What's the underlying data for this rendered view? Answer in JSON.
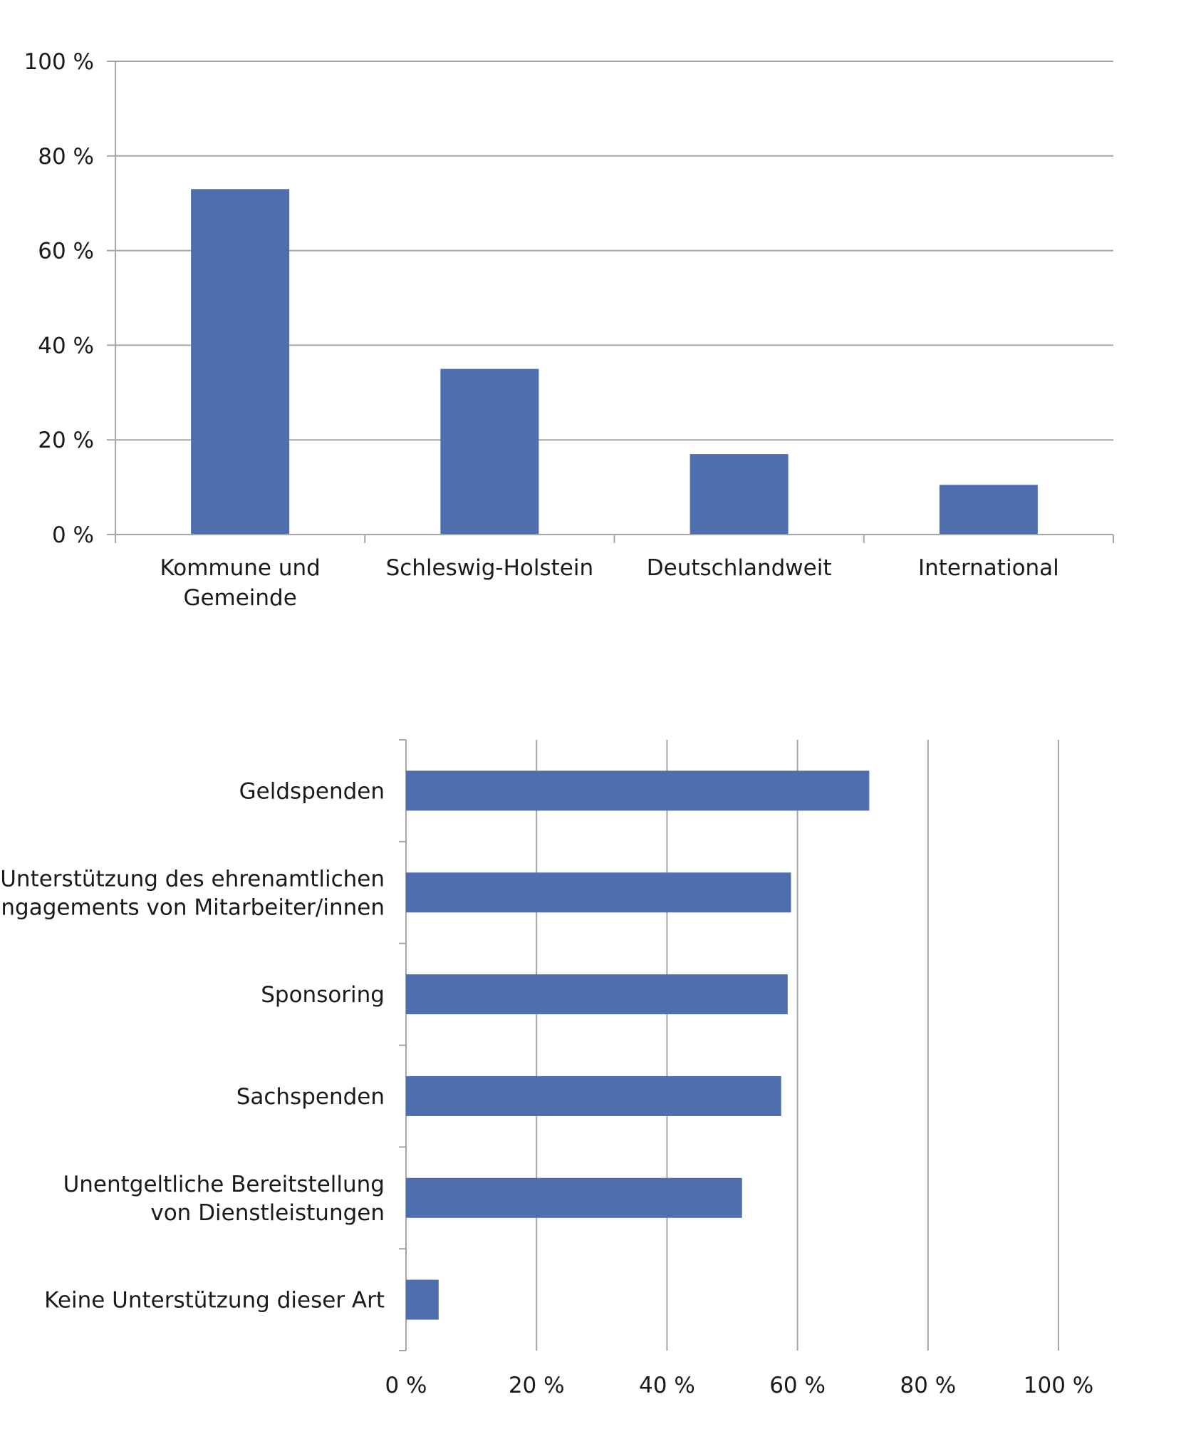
{
  "chart_data": [
    {
      "type": "bar",
      "orientation": "vertical",
      "title": "",
      "xlabel": "",
      "ylabel": "",
      "ylim": [
        0,
        100
      ],
      "grid": true,
      "bar_color": "#4e6fad",
      "y_ticks": [
        "0 %",
        "20 %",
        "40 %",
        "60 %",
        "80 %",
        "100 %"
      ],
      "categories": [
        [
          "Kommune und",
          "Gemeinde"
        ],
        [
          "Schleswig-Holstein"
        ],
        [
          "Deutschlandweit"
        ],
        [
          "International"
        ]
      ],
      "values": [
        73,
        35,
        17,
        10.5
      ]
    },
    {
      "type": "bar",
      "orientation": "horizontal",
      "title": "",
      "xlabel": "",
      "ylabel": "",
      "xlim": [
        0,
        100
      ],
      "grid": true,
      "bar_color": "#4e6fad",
      "x_ticks": [
        "0 %",
        "20 %",
        "40 %",
        "60 %",
        "80 %",
        "100 %"
      ],
      "categories": [
        [
          "Geldspenden"
        ],
        [
          "Unterstützung des ehrenamtlichen",
          "Engagements von Mitarbeiter/innen"
        ],
        [
          "Sponsoring"
        ],
        [
          "Sachspenden"
        ],
        [
          "Unentgeltliche Bereitstellung",
          "von Dienstleistungen"
        ],
        [
          "Keine Unterstützung dieser Art"
        ]
      ],
      "values": [
        71,
        59,
        58.5,
        57.5,
        51.5,
        5
      ]
    }
  ]
}
